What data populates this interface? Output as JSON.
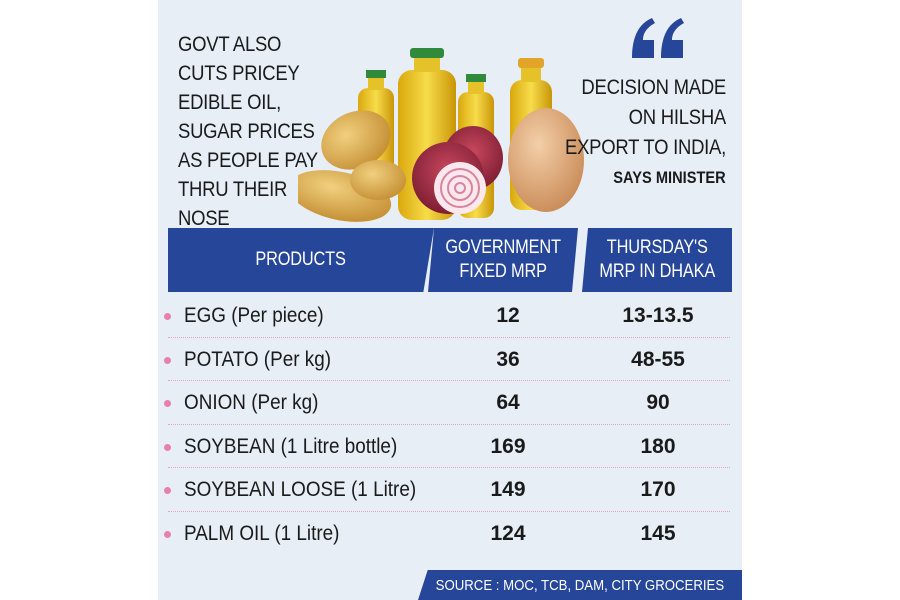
{
  "headline": "GOVT ALSO CUTS PRICEY EDIBLE OIL, SUGAR PRICES AS PEOPLE PAY THRU THEIR NOSE",
  "quote": {
    "lines": [
      "DECISION MADE",
      "ON HILSHA",
      "EXPORT TO INDIA,"
    ],
    "attribution": "SAYS MINISTER"
  },
  "table": {
    "headers": {
      "products": "PRODUCTS",
      "gov_line1": "GOVERNMENT",
      "gov_line2": "FIXED MRP",
      "thu_line1": "THURSDAY'S",
      "thu_line2": "MRP IN DHAKA"
    },
    "rows": [
      {
        "product": "EGG (Per piece)",
        "gov": "12",
        "thu": "13-13.5"
      },
      {
        "product": "POTATO (Per kg)",
        "gov": "36",
        "thu": "48-55"
      },
      {
        "product": "ONION (Per kg)",
        "gov": "64",
        "thu": "90"
      },
      {
        "product": "SOYBEAN (1 Litre bottle)",
        "gov": "169",
        "thu": "180"
      },
      {
        "product": "SOYBEAN LOOSE (1 Litre)",
        "gov": "149",
        "thu": "170"
      },
      {
        "product": "PALM OIL (1 Litre)",
        "gov": "124",
        "thu": "145"
      }
    ]
  },
  "source": "SOURCE : MOC, TCB, DAM, CITY GROCERIES",
  "colors": {
    "header_blue": "#26469a",
    "background": "#e7eef6",
    "bullet_pink": "#e87fae"
  },
  "icons": [
    "quote-icon",
    "oil-bottle-icon",
    "potato-icon",
    "onion-icon",
    "egg-icon"
  ]
}
